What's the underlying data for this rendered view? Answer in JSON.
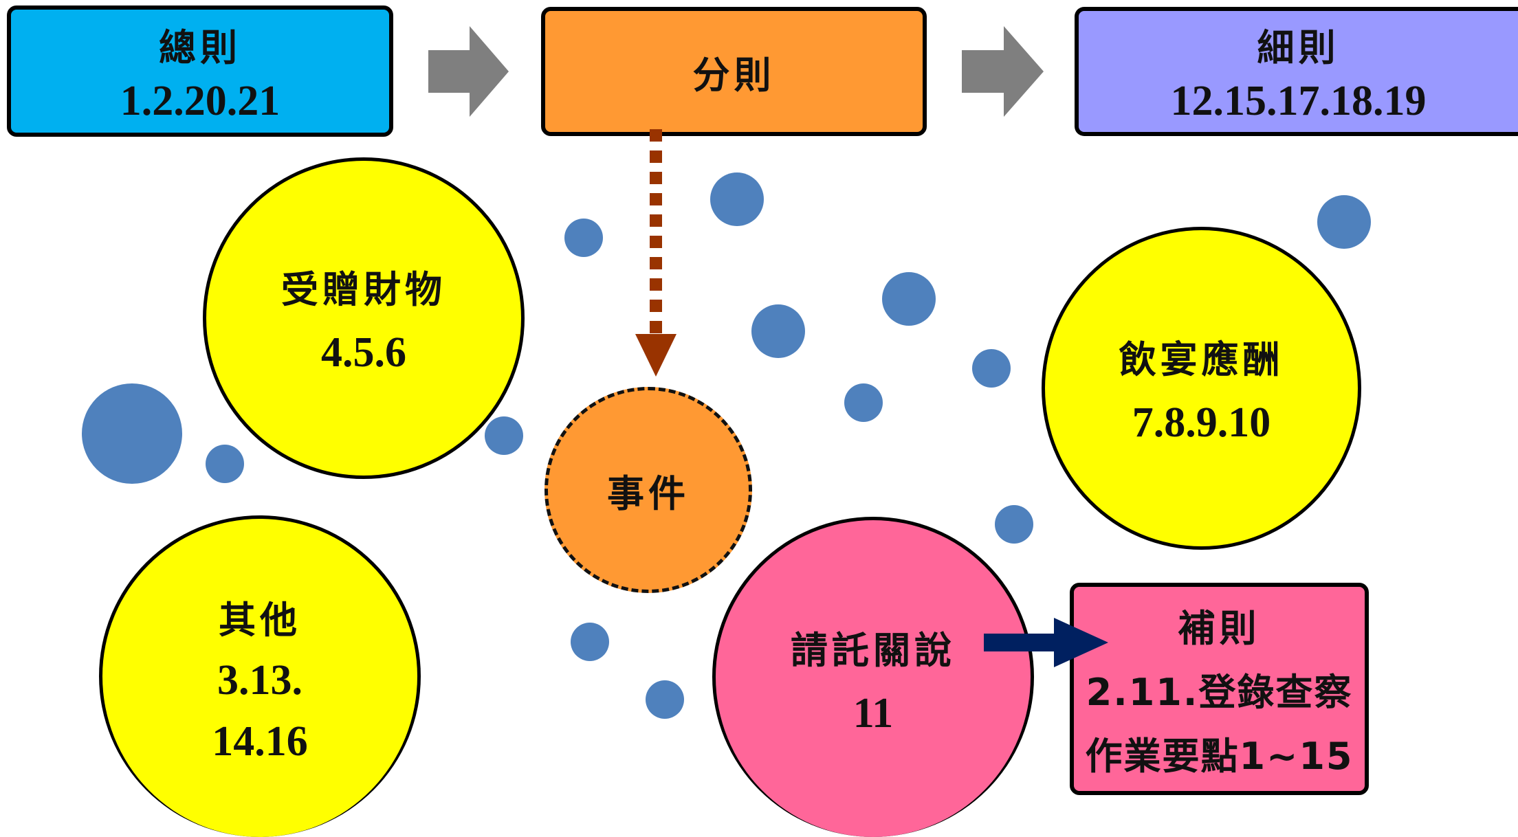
{
  "boxes": {
    "general": {
      "title": "總則",
      "articles": "1.2.20.21",
      "color": "#00b0f0"
    },
    "specific": {
      "title": "分則",
      "color": "#ff9933"
    },
    "detailed": {
      "title": "細則",
      "articles": "12.15.17.18.19",
      "color": "#9999ff"
    },
    "supplementary": {
      "title": "補則",
      "line1": "2.11.登錄查察",
      "line2": "作業要點1~15",
      "color": "#ff6699"
    }
  },
  "circles": {
    "gifts": {
      "title": "受贈財物",
      "articles": "4.5.6",
      "color": "#ffff00"
    },
    "banquets": {
      "title": "飲宴應酬",
      "articles": "7.8.9.10",
      "color": "#ffff00"
    },
    "others": {
      "title": "其他",
      "line1": "3.13.",
      "line2": "14.16",
      "color": "#ffff00"
    },
    "events": {
      "title": "事件",
      "color": "#ff9933"
    },
    "lobbying": {
      "title": "請託關說",
      "articles": "11",
      "color": "#ff6699"
    }
  },
  "colors": {
    "flow_arrow": "#7f7f7f",
    "dashed_arrow": "#993300",
    "link_arrow": "#002060",
    "bubble": "#4f81bd"
  }
}
